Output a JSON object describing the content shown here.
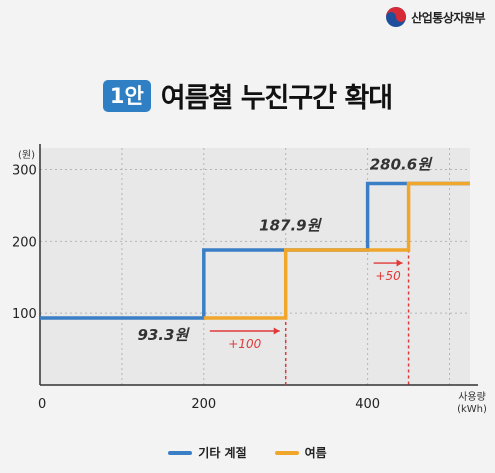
{
  "header": {
    "ministry": "산업통상자원부",
    "badge": "1안",
    "title": "여름철 누진구간 확대"
  },
  "colors": {
    "other_season": "#3a7ec6",
    "summer": "#f0a62a",
    "annotation": "#e03a3a"
  },
  "chart_data": {
    "type": "line",
    "ylabel": "(원)",
    "xlabel": "사용량 (kWh)",
    "xlim": [
      0,
      525
    ],
    "ylim": [
      0,
      330
    ],
    "xticks": [
      0,
      200,
      400
    ],
    "yticks": [
      100,
      200,
      300
    ],
    "grid": true,
    "legend_position": "bottom-center",
    "series": [
      {
        "name": "기타 계절",
        "color": "#3a7ec6",
        "x": [
          0,
          200,
          200,
          400,
          400,
          525
        ],
        "y": [
          93.3,
          93.3,
          187.9,
          187.9,
          280.6,
          280.6
        ]
      },
      {
        "name": "여름",
        "color": "#f0a62a",
        "x": [
          200,
          300,
          300,
          450,
          450,
          525
        ],
        "y": [
          93.3,
          93.3,
          187.9,
          187.9,
          280.6,
          280.6
        ]
      }
    ],
    "value_labels": [
      {
        "text": "93.3원",
        "x": 150,
        "y": 63
      },
      {
        "text": "187.9원",
        "x": 305,
        "y": 215
      },
      {
        "text": "280.6원",
        "x": 440,
        "y": 300
      }
    ],
    "shift_annotations": [
      {
        "text": "+100",
        "x_from": 200,
        "x_to": 300,
        "y_level": 93.3
      },
      {
        "text": "+50",
        "x_from": 400,
        "x_to": 450,
        "y_level": 187.9
      }
    ]
  }
}
